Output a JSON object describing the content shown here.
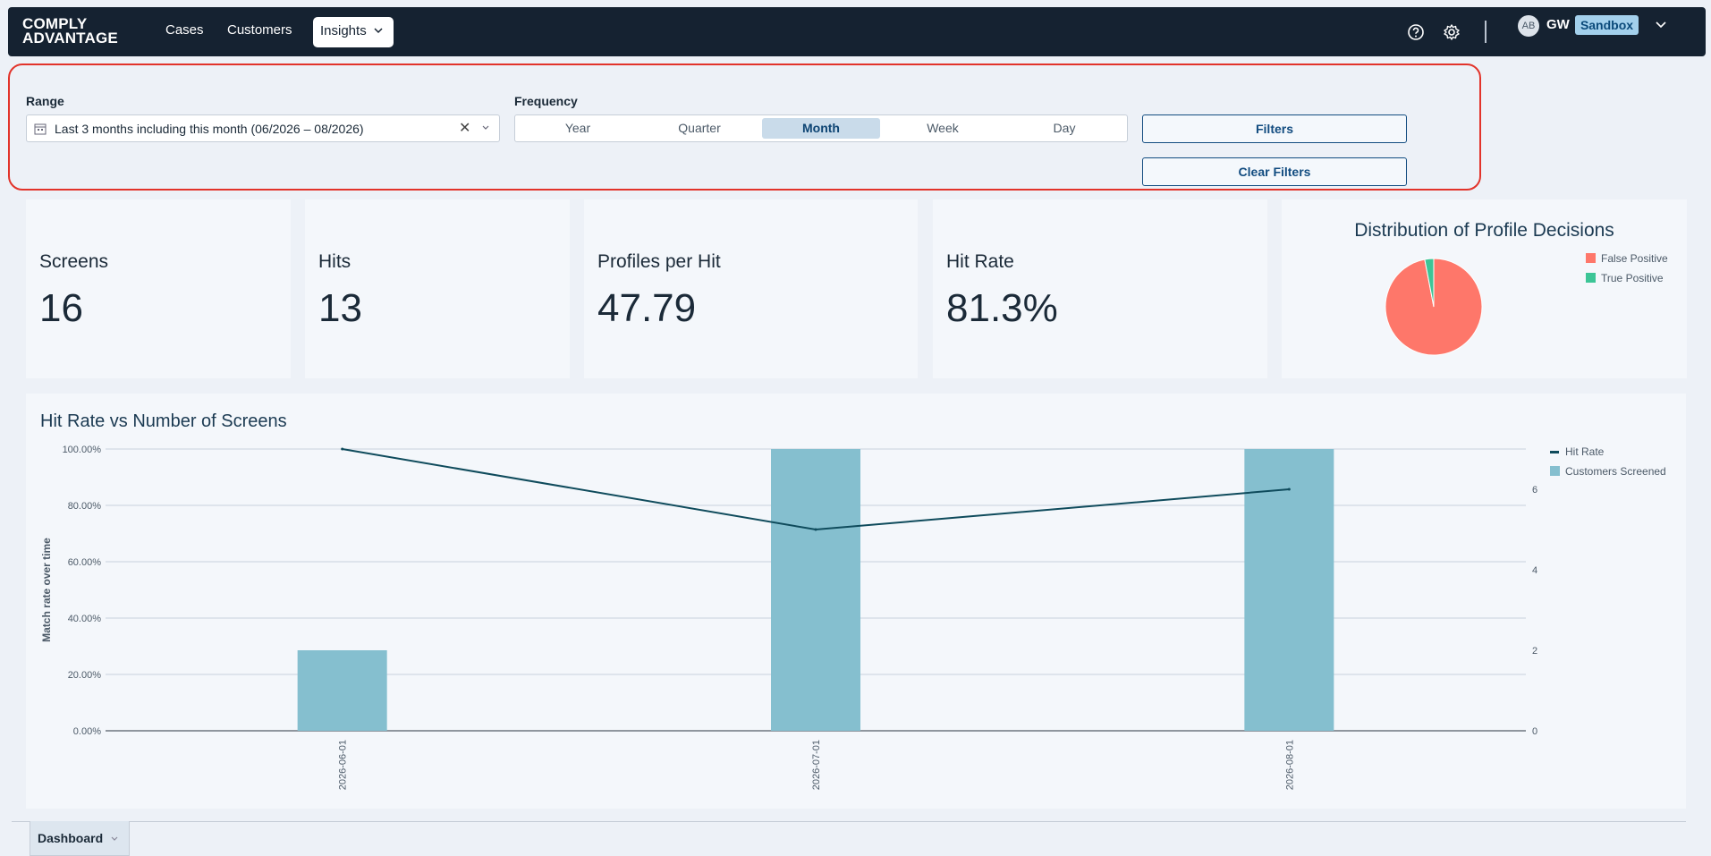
{
  "nav": {
    "logo_line1": "COMPLY",
    "logo_line2": "ADVANTAGE",
    "cases": "Cases",
    "customers": "Customers",
    "insights": "Insights",
    "user_initials_avatar": "AB",
    "user_initials": "GW",
    "env_badge": "Sandbox",
    "icons": [
      "help-icon",
      "settings-icon",
      "chevron-down-icon"
    ]
  },
  "filters": {
    "range_label": "Range",
    "range_value": "Last 3 months including this month (06/2026 – 08/2026)",
    "frequency_label": "Frequency",
    "frequency_options": [
      "Year",
      "Quarter",
      "Month",
      "Week",
      "Day"
    ],
    "frequency_selected": "Month",
    "filters_button": "Filters",
    "clear_filters_button": "Clear Filters"
  },
  "stats": {
    "screens": {
      "label": "Screens",
      "value": "16"
    },
    "hits": {
      "label": "Hits",
      "value": "13"
    },
    "profiles_per_hit": {
      "label": "Profiles per Hit",
      "value": "47.79"
    },
    "hit_rate": {
      "label": "Hit Rate",
      "value": "81.3%"
    }
  },
  "colors": {
    "false_positive": "#fe776a",
    "true_positive": "#3cc596",
    "bar": "#85bfcf",
    "line": "#0f4b5c",
    "accent": "#124c80"
  },
  "chart_data": [
    {
      "type": "pie",
      "title": "Distribution of Profile Decisions",
      "labels": [
        "False Positive",
        "True Positive"
      ],
      "values": [
        97,
        3
      ]
    },
    {
      "type": "bar",
      "title": "Hit Rate vs Number of Screens",
      "categories": [
        "2026-06-01",
        "2026-07-01",
        "2026-08-01"
      ],
      "series": [
        {
          "name": "Customers Screened",
          "type": "bar",
          "axis": "right",
          "values": [
            2,
            7,
            7
          ]
        },
        {
          "name": "Hit Rate",
          "type": "line",
          "axis": "left",
          "values": [
            100,
            71.43,
            85.71
          ]
        }
      ],
      "ylabel": "Match rate over time",
      "ylim": [
        0,
        100
      ],
      "y_ticks": [
        "0.00%",
        "20.00%",
        "40.00%",
        "60.00%",
        "80.00%",
        "100.00%"
      ],
      "y2lim": [
        0,
        7
      ],
      "y2_ticks": [
        "0",
        "2",
        "4",
        "6"
      ],
      "legend_position": "top-right",
      "grid": true
    }
  ],
  "bottom": {
    "tab_label": "Dashboard"
  }
}
